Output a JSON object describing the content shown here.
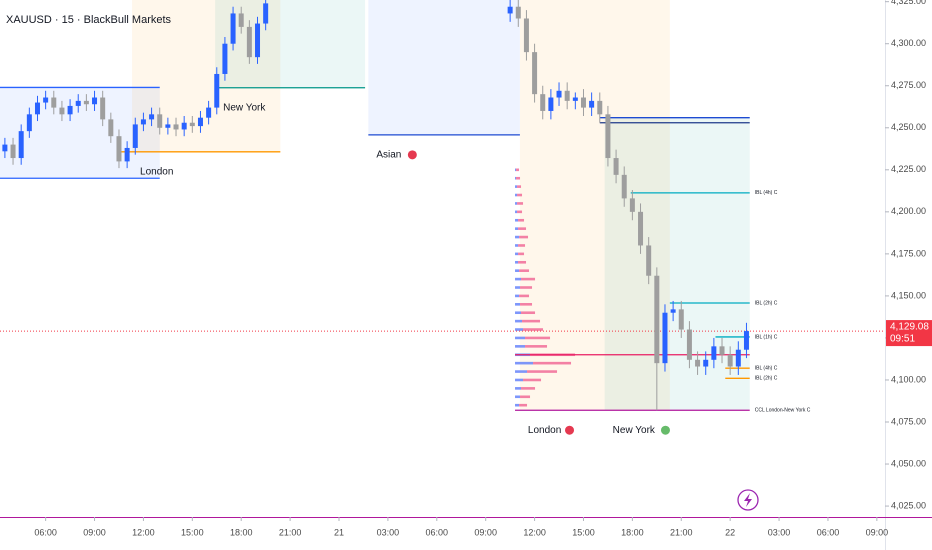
{
  "chart_data": {
    "type": "candlestick",
    "title": "XAUUSD · 15 · BlackBull Markets",
    "xlim": [
      3.2,
      57.5
    ],
    "ylim": [
      4018.5,
      4326
    ],
    "xticks": [
      {
        "value": 6,
        "label": "06:00"
      },
      {
        "value": 9,
        "label": "09:00"
      },
      {
        "value": 12,
        "label": "12:00"
      },
      {
        "value": 15,
        "label": "15:00"
      },
      {
        "value": 18,
        "label": "18:00"
      },
      {
        "value": 21,
        "label": "21:00"
      },
      {
        "value": 24,
        "label": "21"
      },
      {
        "value": 27,
        "label": "03:00"
      },
      {
        "value": 30,
        "label": "06:00"
      },
      {
        "value": 33,
        "label": "09:00"
      },
      {
        "value": 36,
        "label": "12:00"
      },
      {
        "value": 39,
        "label": "15:00"
      },
      {
        "value": 42,
        "label": "18:00"
      },
      {
        "value": 45,
        "label": "21:00"
      },
      {
        "value": 48,
        "label": "22"
      },
      {
        "value": 51,
        "label": "03:00"
      },
      {
        "value": 54,
        "label": "06:00"
      },
      {
        "value": 57,
        "label": "09:00"
      }
    ],
    "yticks": [
      {
        "value": 4025,
        "label": "4,025.00"
      },
      {
        "value": 4050,
        "label": "4,050.00"
      },
      {
        "value": 4075,
        "label": "4,075.00"
      },
      {
        "value": 4100,
        "label": "4,100.00"
      },
      {
        "value": 4125,
        "label": "4,125.00"
      },
      {
        "value": 4150,
        "label": "4,150.00"
      },
      {
        "value": 4175,
        "label": "4,175.00"
      },
      {
        "value": 4200,
        "label": "4,200.00"
      },
      {
        "value": 4225,
        "label": "4,225.00"
      },
      {
        "value": 4250,
        "label": "4,250.00"
      },
      {
        "value": 4275,
        "label": "4,275.00"
      },
      {
        "value": 4300,
        "label": "4,300.00"
      },
      {
        "value": 4325,
        "label": "4,325.00"
      }
    ],
    "up_color": "#2962ff",
    "down_color": "#9e9e9e",
    "segments": [
      {
        "x": [
          3.5,
          4,
          4.5,
          5,
          5.5,
          6,
          6.5,
          7,
          7.5,
          8,
          8.5,
          9,
          9.5,
          10,
          10.5,
          11,
          11.5,
          12,
          12.5,
          13,
          13.5,
          14,
          14.5,
          15,
          15.5,
          16,
          16.5,
          17,
          17.5,
          18,
          18.5,
          19,
          19.5
        ],
        "open": [
          4236,
          4240,
          4232,
          4248,
          4258,
          4265,
          4268,
          4262,
          4258,
          4263,
          4266,
          4264,
          4268,
          4255,
          4245,
          4230,
          4238,
          4252,
          4255,
          4258,
          4250,
          4252,
          4249,
          4253,
          4251,
          4256,
          4262,
          4282,
          4300,
          4318,
          4310,
          4292,
          4312
        ],
        "high": [
          4244,
          4244,
          4252,
          4262,
          4269,
          4272,
          4272,
          4266,
          4267,
          4270,
          4270,
          4272,
          4272,
          4259,
          4249,
          4242,
          4256,
          4259,
          4262,
          4262,
          4256,
          4256,
          4257,
          4257,
          4260,
          4266,
          4286,
          4304,
          4322,
          4322,
          4314,
          4316,
          4328
        ],
        "low": [
          4232,
          4228,
          4228,
          4244,
          4254,
          4261,
          4258,
          4254,
          4254,
          4259,
          4260,
          4260,
          4251,
          4241,
          4226,
          4226,
          4234,
          4248,
          4251,
          4246,
          4246,
          4245,
          4245,
          4247,
          4247,
          4252,
          4258,
          4278,
          4296,
          4306,
          4288,
          4288,
          4308
        ],
        "close": [
          4240,
          4232,
          4248,
          4258,
          4265,
          4268,
          4262,
          4258,
          4263,
          4266,
          4264,
          4268,
          4255,
          4245,
          4230,
          4238,
          4252,
          4255,
          4258,
          4250,
          4252,
          4249,
          4253,
          4251,
          4256,
          4262,
          4282,
          4300,
          4318,
          4310,
          4292,
          4312,
          4324
        ]
      },
      {
        "x": [
          34.5,
          35,
          35.5,
          36,
          36.5,
          37,
          37.5,
          38,
          38.5,
          39,
          39.5,
          40,
          40.5,
          41,
          41.5,
          42,
          42.5,
          43,
          43.5,
          44,
          44.5,
          45,
          45.5,
          46,
          46.5,
          47,
          47.5,
          48,
          48.5,
          49
        ],
        "open": [
          4318,
          4322,
          4315,
          4295,
          4270,
          4260,
          4268,
          4272,
          4266,
          4268,
          4262,
          4266,
          4258,
          4232,
          4222,
          4208,
          4200,
          4180,
          4162,
          4110,
          4140,
          4142,
          4130,
          4112,
          4108,
          4112,
          4120,
          4115,
          4108,
          4118
        ],
        "high": [
          4327,
          4327,
          4320,
          4300,
          4275,
          4273,
          4277,
          4277,
          4271,
          4273,
          4271,
          4271,
          4263,
          4237,
          4227,
          4213,
          4205,
          4185,
          4167,
          4145,
          4147,
          4147,
          4135,
          4117,
          4117,
          4125,
          4125,
          4120,
          4123,
          4134
        ],
        "low": [
          4313,
          4310,
          4290,
          4265,
          4255,
          4255,
          4263,
          4261,
          4261,
          4257,
          4257,
          4253,
          4227,
          4217,
          4203,
          4195,
          4175,
          4157,
          4082,
          4105,
          4135,
          4125,
          4107,
          4103,
          4103,
          4107,
          4110,
          4103,
          4103,
          4113
        ],
        "close": [
          4322,
          4315,
          4295,
          4270,
          4260,
          4268,
          4272,
          4266,
          4268,
          4262,
          4266,
          4258,
          4232,
          4222,
          4208,
          4200,
          4180,
          4162,
          4110,
          4140,
          4142,
          4130,
          4112,
          4108,
          4112,
          4120,
          4115,
          4108,
          4118,
          4129.08
        ]
      }
    ],
    "sessions": [
      {
        "x": [
          3.2,
          13.0
        ],
        "y": [
          4220,
          4274
        ],
        "color": "#2962ff"
      },
      {
        "x": [
          11.3,
          20.4
        ],
        "y": [
          4235.7,
          4326
        ],
        "color": "#ff9800",
        "label": "London",
        "label_color": "#f57c00"
      },
      {
        "x": [
          16.4,
          25.6
        ],
        "y": [
          4273.8,
          4326
        ],
        "color": "#009688",
        "label": "New York",
        "label_color": "#26a69a"
      },
      {
        "x": [
          25.8,
          35.1
        ],
        "y": [
          4245.8,
          4326
        ],
        "color": "#2962ff",
        "label": "Asian",
        "label_color": "#1e3a8a",
        "marker": "#e53950"
      },
      {
        "x": [
          35.1,
          44.3
        ],
        "y": [
          4082,
          4326
        ],
        "color": "#ff9800",
        "label": "London",
        "label_color": "#f57c00",
        "marker": "#e53950"
      },
      {
        "x": [
          40.3,
          49.2
        ],
        "y": [
          4082,
          4256
        ],
        "color": "#009688",
        "label": "New York",
        "label_color": "#26a69a",
        "marker": "#66bb6a"
      }
    ],
    "levels": [
      {
        "price": 4274,
        "x": [
          3.2,
          13.0
        ],
        "color": "#2962ff"
      },
      {
        "price": 4220,
        "x": [
          3.2,
          13.0
        ],
        "color": "#2962ff"
      },
      {
        "price": 4235.7,
        "x": [
          10.6,
          20.4
        ],
        "color": "#ff9800"
      },
      {
        "price": 4273.8,
        "x": [
          16.4,
          25.6
        ],
        "color": "#009688"
      },
      {
        "price": 4245.8,
        "x": [
          25.8,
          35.1
        ],
        "color": "#1e4bd2"
      },
      {
        "price": 4256,
        "x": [
          40.0,
          49.2
        ],
        "color": "#1e4bd2"
      },
      {
        "price": 4253,
        "x": [
          40.0,
          49.2
        ],
        "color": "#1e3a8a"
      },
      {
        "price": 4211.3,
        "x": [
          41.9,
          49.2
        ],
        "color": "#00acc1",
        "label": "IBL (4h) C"
      },
      {
        "price": 4145.8,
        "x": [
          44.3,
          49.2
        ],
        "color": "#00acc1",
        "label": "IBL (2h) C"
      },
      {
        "price": 4125.6,
        "x": [
          47.1,
          49.2
        ],
        "color": "#00acc1",
        "label": "IBL (1h) C"
      },
      {
        "price": 4115,
        "x": [
          34.8,
          49.2
        ],
        "color": "#e91e63"
      },
      {
        "price": 4107,
        "x": [
          47.7,
          49.2
        ],
        "color": "#ff9800",
        "label": "IBL (4h) C"
      },
      {
        "price": 4101,
        "x": [
          47.7,
          49.2
        ],
        "color": "#ff9800",
        "label": "IBL (2h) C"
      },
      {
        "price": 4082,
        "x": [
          34.8,
          49.2
        ],
        "color": "#b0179c",
        "label": "CCL London-New York C"
      }
    ],
    "profile": {
      "x": 34.8,
      "prices": [
        4085,
        4090,
        4095,
        4100,
        4105,
        4110,
        4115,
        4120,
        4125,
        4130,
        4135,
        4140,
        4145,
        4150,
        4155,
        4160,
        4165,
        4170,
        4175,
        4180,
        4185,
        4190,
        4195,
        4200,
        4205,
        4210,
        4215,
        4220,
        4225
      ],
      "sell": [
        8,
        10,
        14,
        18,
        30,
        38,
        45,
        22,
        25,
        20,
        18,
        14,
        12,
        10,
        12,
        14,
        10,
        8,
        6,
        7,
        9,
        8,
        6,
        5,
        6,
        5,
        4,
        4,
        3
      ],
      "buy": [
        4,
        5,
        6,
        8,
        12,
        18,
        15,
        10,
        10,
        8,
        7,
        6,
        5,
        4,
        5,
        6,
        4,
        3,
        3,
        3,
        4,
        3,
        3,
        2,
        2,
        2,
        2,
        1,
        1
      ],
      "sell_color": "#f06292",
      "buy_color": "#5c7cfa"
    },
    "last_price": {
      "value": 4129.08,
      "label": "4,129.08"
    },
    "countdown": "09:51",
    "last_color": "#f23645"
  }
}
